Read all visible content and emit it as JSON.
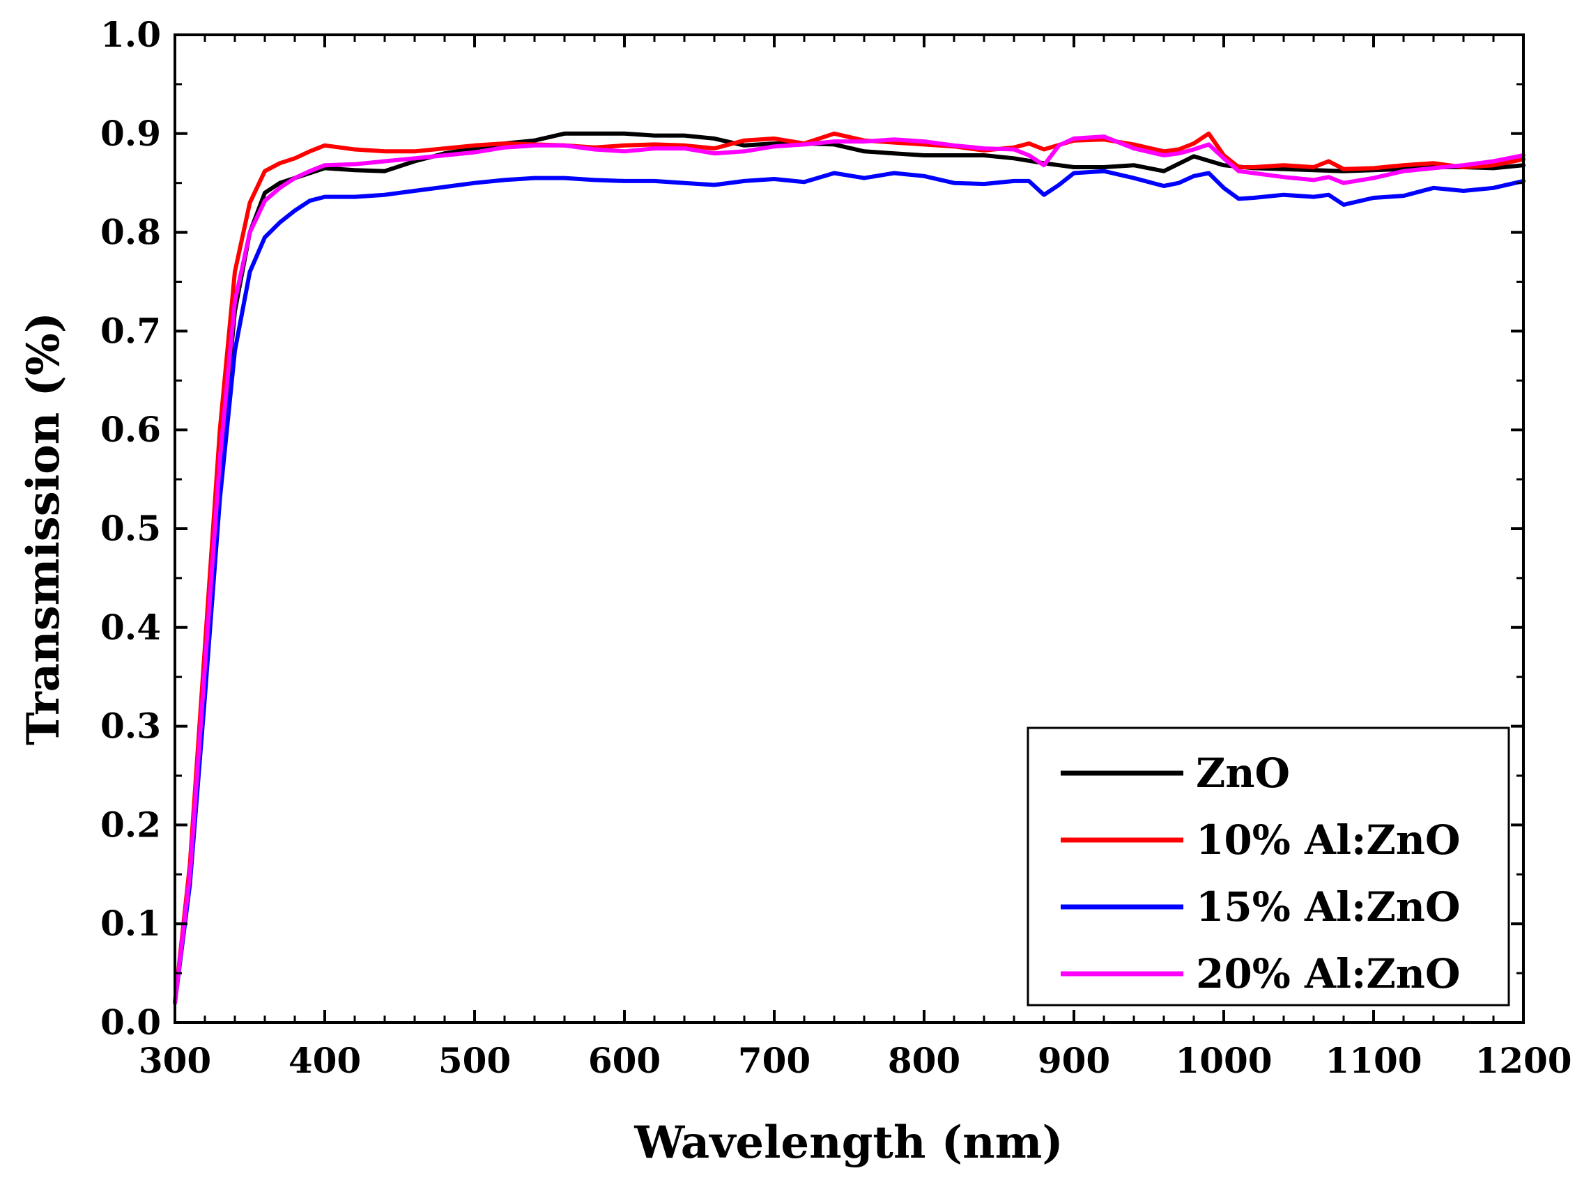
{
  "chart_data": {
    "type": "line",
    "title": "",
    "xlabel": "Wavelength (nm)",
    "ylabel": "Transmission (%)",
    "xlim": [
      300,
      1200
    ],
    "ylim": [
      0.0,
      1.0
    ],
    "x_ticks": [
      300,
      400,
      500,
      600,
      700,
      800,
      900,
      1000,
      1100,
      1200
    ],
    "x_tick_labels": [
      "300",
      "400",
      "500",
      "600",
      "700",
      "800",
      "900",
      "1000",
      "1100",
      "1200"
    ],
    "y_ticks": [
      0.0,
      0.1,
      0.2,
      0.3,
      0.4,
      0.5,
      0.6,
      0.7,
      0.8,
      0.9,
      1.0
    ],
    "y_tick_labels": [
      "0.0",
      "0.1",
      "0.2",
      "0.3",
      "0.4",
      "0.5",
      "0.6",
      "0.7",
      "0.8",
      "0.9",
      "1.0"
    ],
    "grid": false,
    "legend_position": "bottom-right",
    "series": [
      {
        "name": "ZnO",
        "color": "#000000",
        "x": [
          300,
          310,
          320,
          330,
          340,
          350,
          360,
          370,
          380,
          390,
          400,
          420,
          440,
          460,
          480,
          500,
          520,
          540,
          560,
          580,
          600,
          620,
          640,
          660,
          680,
          700,
          720,
          740,
          760,
          780,
          800,
          820,
          840,
          860,
          880,
          900,
          920,
          940,
          960,
          980,
          1000,
          1020,
          1040,
          1060,
          1080,
          1100,
          1120,
          1140,
          1160,
          1180,
          1200
        ],
        "y": [
          0.02,
          0.15,
          0.35,
          0.56,
          0.72,
          0.8,
          0.84,
          0.85,
          0.855,
          0.86,
          0.865,
          0.863,
          0.862,
          0.872,
          0.88,
          0.885,
          0.89,
          0.893,
          0.9,
          0.9,
          0.9,
          0.898,
          0.898,
          0.895,
          0.888,
          0.89,
          0.89,
          0.889,
          0.882,
          0.88,
          0.878,
          0.878,
          0.878,
          0.875,
          0.87,
          0.866,
          0.866,
          0.868,
          0.862,
          0.877,
          0.868,
          0.865,
          0.864,
          0.863,
          0.862,
          0.863,
          0.864,
          0.866,
          0.866,
          0.865,
          0.868
        ]
      },
      {
        "name": "10% Al:ZnO",
        "color": "#ff0000",
        "x": [
          300,
          310,
          320,
          330,
          340,
          350,
          360,
          370,
          380,
          390,
          400,
          420,
          440,
          460,
          480,
          500,
          520,
          540,
          560,
          580,
          600,
          620,
          640,
          660,
          680,
          700,
          720,
          740,
          760,
          780,
          800,
          820,
          840,
          860,
          870,
          880,
          900,
          920,
          940,
          960,
          970,
          980,
          990,
          1000,
          1010,
          1020,
          1040,
          1060,
          1070,
          1080,
          1100,
          1120,
          1140,
          1160,
          1180,
          1200
        ],
        "y": [
          0.02,
          0.16,
          0.38,
          0.6,
          0.76,
          0.83,
          0.862,
          0.87,
          0.875,
          0.882,
          0.888,
          0.884,
          0.882,
          0.882,
          0.885,
          0.888,
          0.89,
          0.889,
          0.888,
          0.886,
          0.888,
          0.889,
          0.888,
          0.885,
          0.893,
          0.895,
          0.89,
          0.9,
          0.893,
          0.891,
          0.889,
          0.887,
          0.883,
          0.886,
          0.89,
          0.884,
          0.893,
          0.894,
          0.889,
          0.882,
          0.884,
          0.89,
          0.9,
          0.878,
          0.866,
          0.866,
          0.868,
          0.866,
          0.872,
          0.864,
          0.865,
          0.868,
          0.87,
          0.866,
          0.868,
          0.874
        ]
      },
      {
        "name": "15% Al:ZnO",
        "color": "#0000ff",
        "x": [
          300,
          310,
          320,
          330,
          340,
          350,
          360,
          370,
          380,
          390,
          400,
          420,
          440,
          460,
          480,
          500,
          520,
          540,
          560,
          580,
          600,
          620,
          640,
          660,
          680,
          700,
          720,
          740,
          760,
          780,
          800,
          820,
          840,
          860,
          870,
          880,
          890,
          900,
          920,
          940,
          960,
          970,
          980,
          990,
          1000,
          1010,
          1020,
          1040,
          1060,
          1070,
          1080,
          1100,
          1120,
          1140,
          1160,
          1180,
          1200
        ],
        "y": [
          0.02,
          0.14,
          0.33,
          0.53,
          0.68,
          0.76,
          0.795,
          0.81,
          0.822,
          0.832,
          0.836,
          0.836,
          0.838,
          0.842,
          0.846,
          0.85,
          0.853,
          0.855,
          0.855,
          0.853,
          0.852,
          0.852,
          0.85,
          0.848,
          0.852,
          0.854,
          0.851,
          0.86,
          0.855,
          0.86,
          0.857,
          0.85,
          0.849,
          0.852,
          0.852,
          0.838,
          0.848,
          0.86,
          0.862,
          0.855,
          0.847,
          0.85,
          0.857,
          0.86,
          0.845,
          0.834,
          0.835,
          0.838,
          0.836,
          0.838,
          0.828,
          0.835,
          0.837,
          0.845,
          0.842,
          0.845,
          0.852
        ]
      },
      {
        "name": "20% Al:ZnO",
        "color": "#ff00ff",
        "x": [
          300,
          310,
          320,
          330,
          340,
          350,
          360,
          370,
          380,
          390,
          400,
          420,
          440,
          460,
          480,
          500,
          520,
          540,
          560,
          580,
          600,
          620,
          640,
          660,
          680,
          700,
          720,
          740,
          760,
          780,
          800,
          820,
          840,
          860,
          870,
          880,
          890,
          900,
          920,
          940,
          960,
          970,
          980,
          990,
          1000,
          1010,
          1020,
          1040,
          1060,
          1070,
          1080,
          1100,
          1120,
          1140,
          1160,
          1180,
          1200
        ],
        "y": [
          0.02,
          0.15,
          0.36,
          0.57,
          0.73,
          0.8,
          0.832,
          0.845,
          0.855,
          0.862,
          0.868,
          0.869,
          0.872,
          0.875,
          0.878,
          0.881,
          0.886,
          0.888,
          0.888,
          0.884,
          0.882,
          0.885,
          0.885,
          0.88,
          0.882,
          0.887,
          0.889,
          0.892,
          0.892,
          0.894,
          0.892,
          0.888,
          0.885,
          0.884,
          0.878,
          0.868,
          0.888,
          0.895,
          0.897,
          0.885,
          0.878,
          0.88,
          0.884,
          0.889,
          0.875,
          0.862,
          0.86,
          0.856,
          0.853,
          0.856,
          0.85,
          0.855,
          0.862,
          0.865,
          0.868,
          0.872,
          0.878
        ]
      }
    ]
  }
}
